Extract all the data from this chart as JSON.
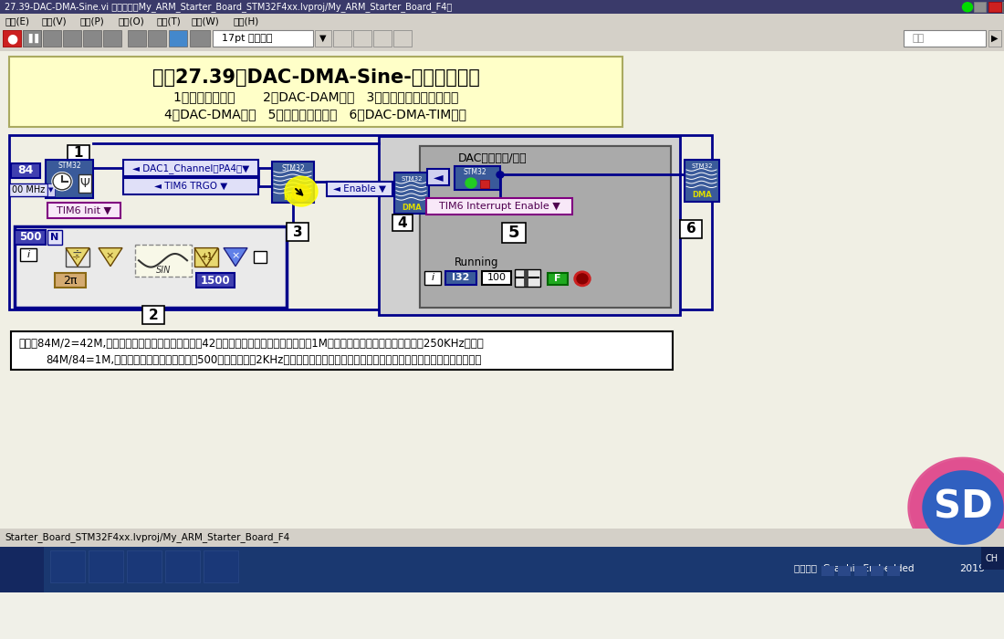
{
  "title_text": "实验27.39：DAC-DMA-Sine-高频信号生成",
  "subtitle_line1": "1、定时器初始化       2、DAC-DAM配置   3、准备好一个周期正弦波",
  "subtitle_line2": "4、DAC-DMA使能   5、定时器中断开启   6、DAC-DMA-TIM关闭",
  "note_line1": "注意：84M/2=42M,然后一个周期的正弦波量化点数是42，那么理论上生成的正弦波应该是1M，但是由于器件原因，实际测试是250KHz左右；",
  "note_line2": "84M/84=1M,然后把正弦波量化点数设置为500，实际生成的2KHz的正弦波，跟理论值完全吻合，低频比较准确，高频一般有个上限值。",
  "bg_color": "#F0F0E8",
  "title_box_color": "#FFFFC8",
  "titlebar_color": "#3A3A6A",
  "menubar_color": "#D4D0C8",
  "toolbar_color": "#D4D0C8",
  "diagram_bg": "#F0EFE4",
  "wire_color": "#00008B",
  "stm32_color": "#3A5A9A",
  "loop_bg": "#E8E8E8",
  "right_panel_bg": "#C8C8C8",
  "inner_panel_bg": "#888888",
  "yellow_glow": "#FFFF00",
  "dark_blue_border": "#00008B",
  "purple_border": "#800080",
  "tan_color": "#D4AA70",
  "note_bg": "#FFFFFF",
  "taskbar_color": "#1A3870",
  "status_bar_color": "#D4D0C8",
  "sd_outer": "#E05090",
  "sd_inner": "#3060C0"
}
